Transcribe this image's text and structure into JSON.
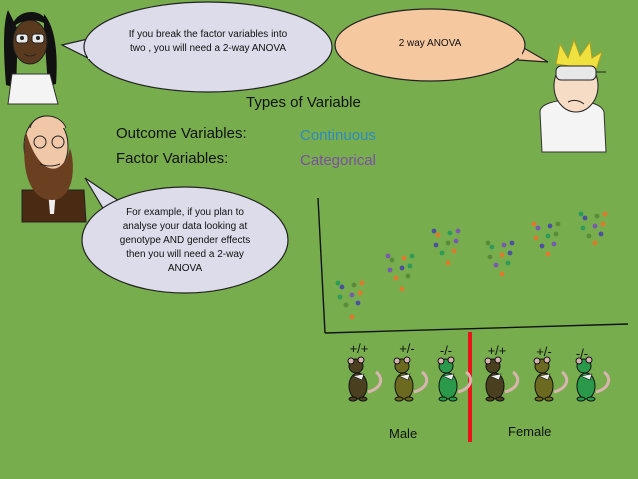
{
  "slide": {
    "title": "Types of Variable",
    "variables": [
      {
        "label": "Outcome Variables:",
        "value": "Continuous",
        "value_color": "#2e8bc0"
      },
      {
        "label": "Factor Variables:",
        "value": "Categorical",
        "value_color": "#7d4fa3"
      }
    ]
  },
  "bubbles": {
    "top_left": "If you break the factor variables into two , you will need a 2-way ANOVA",
    "top_right": "2 way ANOVA",
    "middle_left": "For example, if you plan to analyse your data looking at genotype AND gender effects then you will need a 2-way ANOVA"
  },
  "plot": {
    "genotypes": [
      "+/+",
      "+/-",
      "-/-",
      "+/+",
      "+/-",
      "-/-"
    ],
    "groups": [
      "Male",
      "Female"
    ],
    "divider_color": "#e8141a",
    "dot_colors": [
      "#4f4fa0",
      "#5a8a3a",
      "#e07a2a",
      "#2e9b5a",
      "#7a5ab0"
    ]
  },
  "colors": {
    "background": "#77ad4d",
    "bubble_fill": "#dcdcea",
    "top_right_fill": "#f6c8a0",
    "mouse_colors": [
      "#4a4020",
      "#6b6a20",
      "#2a9a4a",
      "#4a4020",
      "#6b6a20",
      "#2a9a4a"
    ]
  }
}
